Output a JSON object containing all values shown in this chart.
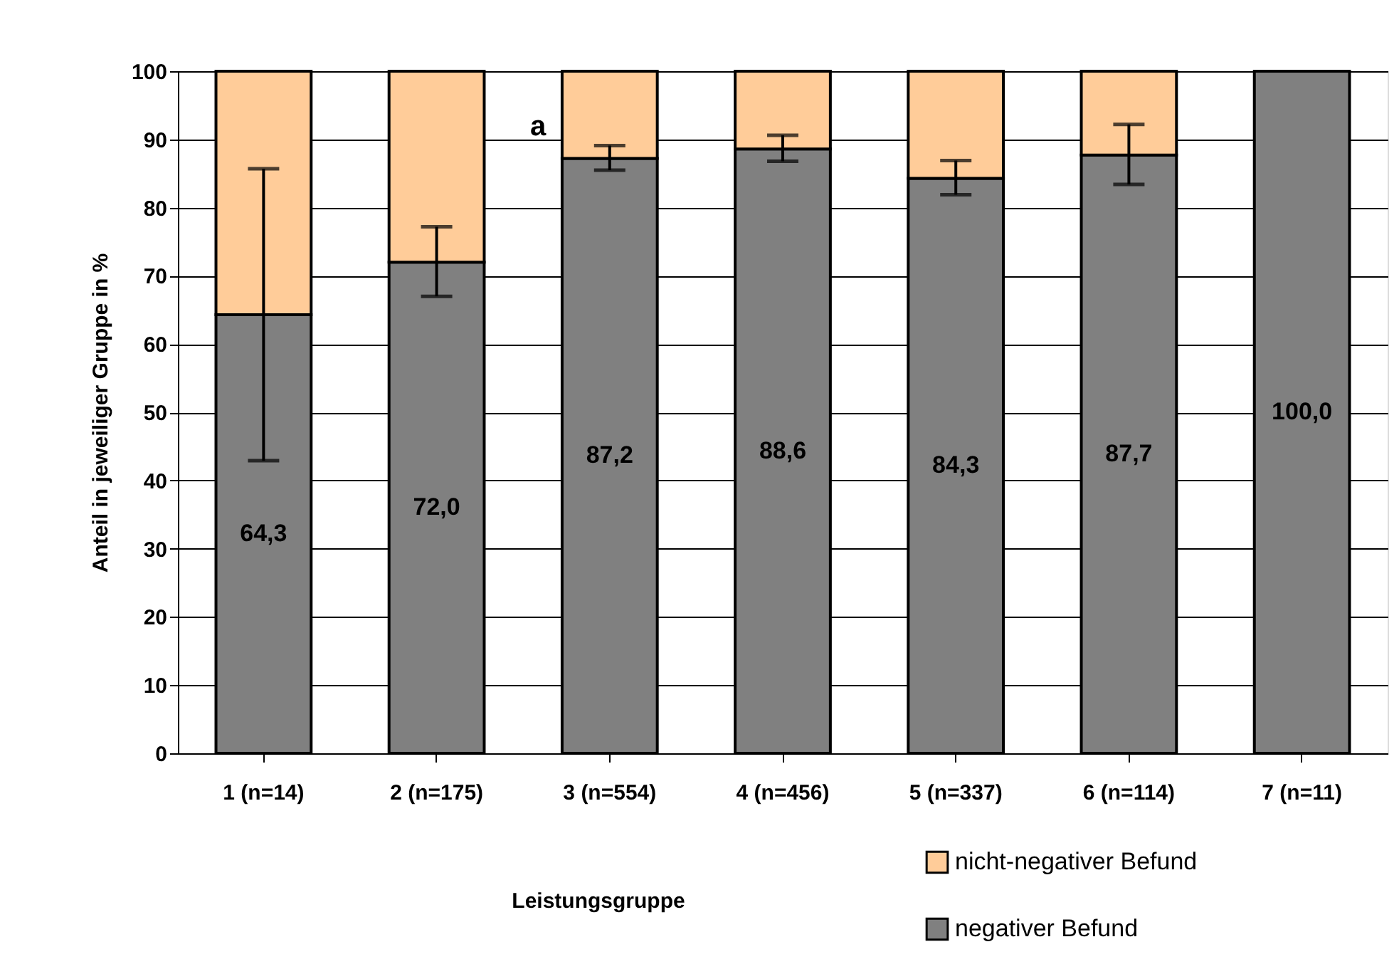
{
  "chart_data": {
    "type": "bar",
    "stacked": true,
    "categories": [
      "1 (n=14)",
      "2 (n=175)",
      "3 (n=554)",
      "4 (n=456)",
      "5 (n=337)",
      "6 (n=114)",
      "7 (n=11)"
    ],
    "series": [
      {
        "name": "negativer Befund",
        "color": "#808080",
        "values": [
          64.3,
          72.0,
          87.2,
          88.6,
          84.3,
          87.7,
          100.0
        ],
        "value_labels": [
          "64,3",
          "72,0",
          "87,2",
          "88,6",
          "84,3",
          "87,7",
          "100,0"
        ],
        "errors": [
          [
            42.9,
            85.7
          ],
          [
            67.0,
            77.2
          ],
          [
            85.5,
            89.1
          ],
          [
            86.8,
            90.6
          ],
          [
            81.9,
            86.9
          ],
          [
            83.4,
            92.2
          ],
          null
        ]
      },
      {
        "name": "nicht-negativer Befund",
        "color": "#ffcc99",
        "values": [
          35.7,
          28.0,
          12.8,
          11.4,
          15.7,
          12.3,
          null
        ]
      }
    ],
    "xlabel": "Leistungsgruppe",
    "ylabel": "Anteil in jeweiliger Gruppe in %",
    "ylim": [
      0,
      100
    ],
    "yticks": [
      0,
      10,
      20,
      30,
      40,
      50,
      60,
      70,
      80,
      90,
      100
    ],
    "annotations": [
      "a"
    ],
    "grid": "y",
    "legend": "bottom right"
  }
}
